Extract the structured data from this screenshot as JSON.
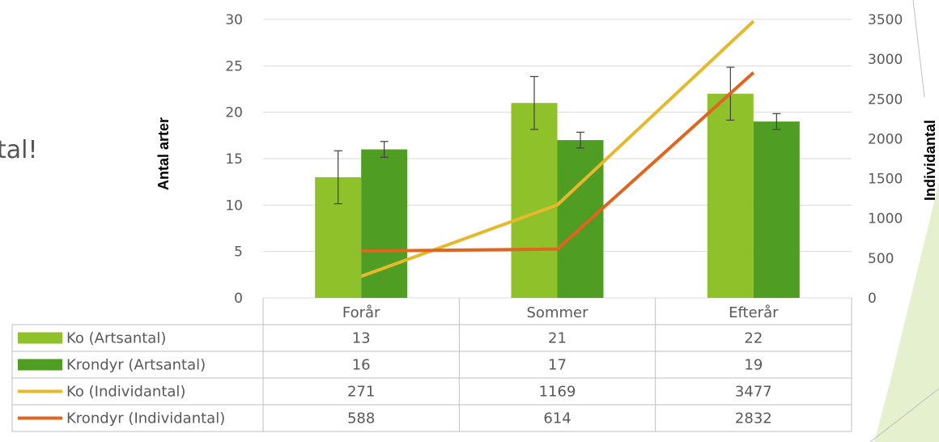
{
  "slide": {
    "text": "tal!"
  },
  "colors": {
    "ko_art": "#8FC12A",
    "krondyr_art": "#4F9E23",
    "ko_ind": "#E6B82C",
    "krondyr_ind": "#E0651E",
    "grid": "#D9D9D9",
    "text": "#595959",
    "errorbar": "#404040",
    "decor_green": "#CFE3A8"
  },
  "chart_data": {
    "type": "bar",
    "categories": [
      "Forår",
      "Sommer",
      "Efterår"
    ],
    "series": [
      {
        "name": "Ko (Artsantal)",
        "kind": "bar",
        "axis": "left",
        "values": [
          13,
          21,
          22
        ],
        "error": [
          2.85,
          2.85,
          2.85
        ]
      },
      {
        "name": "Krondyr (Artsantal)",
        "kind": "bar",
        "axis": "left",
        "values": [
          16,
          17,
          19
        ],
        "error": [
          0.85,
          0.85,
          0.85
        ]
      },
      {
        "name": "Ko (Individantal)",
        "kind": "line",
        "axis": "right",
        "values": [
          271,
          1169,
          3477
        ]
      },
      {
        "name": "Krondyr (Individantal)",
        "kind": "line",
        "axis": "right",
        "values": [
          588,
          614,
          2832
        ]
      }
    ],
    "ylabel": "Antal arter",
    "y2label": "Individantal",
    "ylim": [
      0,
      30
    ],
    "yticks": [
      0,
      5,
      10,
      15,
      20,
      25,
      30
    ],
    "y2lim": [
      0,
      3500
    ],
    "y2ticks": [
      0,
      500,
      1000,
      1500,
      2000,
      2500,
      3000,
      3500
    ],
    "grid": true,
    "legend": "data-table"
  }
}
